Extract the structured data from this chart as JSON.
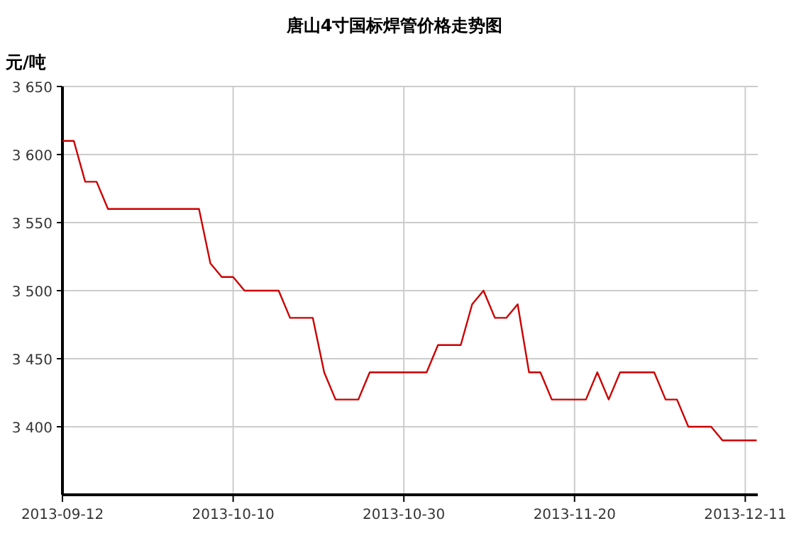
{
  "chart_data": {
    "type": "line",
    "title": "唐山4寸国标焊管价格走势图",
    "ylabel": "元/吨",
    "categories": [
      "2013-09-12",
      null,
      null,
      null,
      null,
      null,
      null,
      null,
      null,
      null,
      null,
      null,
      null,
      null,
      null,
      "2013-10-10",
      null,
      null,
      null,
      null,
      null,
      null,
      null,
      null,
      null,
      null,
      null,
      null,
      null,
      null,
      "2013-10-30",
      null,
      null,
      null,
      null,
      null,
      null,
      null,
      null,
      null,
      null,
      null,
      null,
      null,
      null,
      "2013-11-20",
      null,
      null,
      null,
      null,
      null,
      null,
      null,
      null,
      null,
      null,
      null,
      null,
      null,
      null,
      "2013-12-11",
      null
    ],
    "series": [
      {
        "color": "#cc0000",
        "values": [
          3610,
          3610,
          3580,
          3580,
          3560,
          3560,
          3560,
          3560,
          3560,
          3560,
          3560,
          3560,
          3560,
          3520,
          3510,
          3510,
          3500,
          3500,
          3500,
          3500,
          3480,
          3480,
          3480,
          3440,
          3420,
          3420,
          3420,
          3440,
          3440,
          3440,
          3440,
          3440,
          3440,
          3460,
          3460,
          3460,
          3490,
          3500,
          3480,
          3480,
          3490,
          3440,
          3440,
          3420,
          3420,
          3420,
          3420,
          3440,
          3420,
          3440,
          3440,
          3440,
          3440,
          3420,
          3420,
          3400,
          3400,
          3400,
          3390,
          3390,
          3390,
          3390
        ]
      }
    ],
    "ylim": [
      3350,
      3650
    ],
    "yticks": [
      {
        "value": 3400,
        "label": "3 400"
      },
      {
        "value": 3450,
        "label": "3 450"
      },
      {
        "value": 3500,
        "label": "3 500"
      },
      {
        "value": 3550,
        "label": "3 550"
      },
      {
        "value": 3600,
        "label": "3 600"
      },
      {
        "value": 3650,
        "label": "3 650"
      }
    ],
    "grid": true,
    "marker": "none",
    "line_style": "solid"
  }
}
